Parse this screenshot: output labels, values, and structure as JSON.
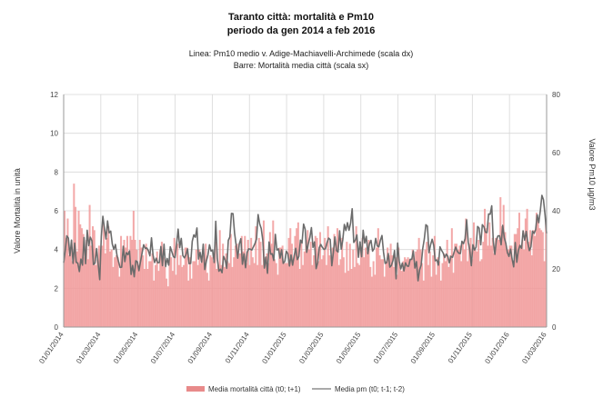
{
  "chart_data": {
    "type": "bar+line",
    "title": "Taranto città: mortalità e Pm10",
    "subtitle": "periodo da gen 2014 a feb 2016",
    "caption_line": "Linea: Pm10 medio v. Adige-Machiavelli-Archimede (scala dx)",
    "caption_bars": "Barre: Mortalità media città (scala sx)",
    "ylabel_left": "Valore Mortalità in unità",
    "ylabel_right": "Valore Pm10 µg/m3",
    "ylim_left": [
      0,
      12
    ],
    "ylim_right": [
      0,
      80
    ],
    "yticks_left": [
      "0",
      "2",
      "4",
      "6",
      "8",
      "10",
      "12"
    ],
    "yticks_right": [
      "0",
      "20",
      "40",
      "60",
      "80"
    ],
    "xticks": [
      "01/01/2014",
      "01/03/2014",
      "01/05/2014",
      "01/07/2014",
      "01/09/2014",
      "01/11/2014",
      "01/01/2015",
      "01/03/2015",
      "01/05/2015",
      "01/07/2015",
      "01/09/2015",
      "01/11/2015",
      "01/01/2016",
      "01/03/2016"
    ],
    "grid": true,
    "legend_position": "bottom",
    "bar_color": "#f19a9a",
    "line_color": "#6b6b6b",
    "series": [
      {
        "name": "Media mortalità città (t0; t+1)",
        "type": "bar",
        "axis": "left",
        "x_start": "01/01/2014",
        "x_end": "01/03/2016",
        "values": [
          6.0,
          4.6,
          5.6,
          3.7,
          4.0,
          3.4,
          7.4,
          6.2,
          3.9,
          6.0,
          5.3,
          5.1,
          4.8,
          3.6,
          4.5,
          3.5,
          6.3,
          4.2,
          5.2,
          5.0,
          3.2,
          3.5,
          4.2,
          3.8,
          4.2,
          5.3,
          3.8,
          4.6,
          5.2,
          3.9,
          4.0,
          3.1,
          3.6,
          3.7,
          3.6,
          2.6,
          4.7,
          3.6,
          4.5,
          4.1,
          4.7,
          3.9,
          4.7,
          4.5,
          6.0,
          4.5,
          4.0,
          3.2,
          4.5,
          4.1,
          3.7,
          3.0,
          4.3,
          3.0,
          3.4,
          3.4,
          3.8,
          2.4,
          3.2,
          3.9,
          2.9,
          4.0,
          4.4,
          3.6,
          3.1,
          2.5,
          2.1,
          3.8,
          3.6,
          2.9,
          4.6,
          2.7,
          4.3,
          3.2,
          3.7,
          3.1,
          3.2,
          4.1,
          4.1,
          2.4,
          3.6,
          2.5,
          3.4,
          3.4,
          4.0,
          3.2,
          4.0,
          3.3,
          3.7,
          3.5,
          4.3,
          2.8,
          2.4,
          3.7,
          3.6,
          3.4,
          4.4,
          3.0,
          3.2,
          5.0,
          3.2,
          4.3,
          3.1,
          3.8,
          3.4,
          3.3,
          4.8,
          3.1,
          3.6,
          4.2,
          4.3,
          3.8,
          3.8,
          4.7,
          3.9,
          4.7,
          3.3,
          4.5,
          3.2,
          4.6,
          3.6,
          3.3,
          5.2,
          3.2,
          4.6,
          4.4,
          3.2,
          5.5,
          3.6,
          3.8,
          3.3,
          4.9,
          4.3,
          5.5,
          3.5,
          3.3,
          2.7,
          4.1,
          4.1,
          4.2,
          3.4,
          3.3,
          3.3,
          4.6,
          5.1,
          4.3,
          3.5,
          4.7,
          5.1,
          5.4,
          3.0,
          4.5,
          3.2,
          3.9,
          4.5,
          5.0,
          4.0,
          4.4,
          3.2,
          3.7,
          4.7,
          4.6,
          3.4,
          4.9,
          3.5,
          3.7,
          4.6,
          3.2,
          5.2,
          3.7,
          3.6,
          4.1,
          4.8,
          4.0,
          5.1,
          3.2,
          3.5,
          4.6,
          3.6,
          2.8,
          4.4,
          2.9,
          4.3,
          3.0,
          4.0,
          3.1,
          5.2,
          3.3,
          3.2,
          4.1,
          4.6,
          3.6,
          4.1,
          3.9,
          4.5,
          3.1,
          2.6,
          3.4,
          2.7,
          4.1,
          5.1,
          3.7,
          3.5,
          3.5,
          2.6,
          3.4,
          4.1,
          3.7,
          4.3,
          3.7,
          3.1,
          3.6,
          2.7,
          4.1,
          3.1,
          2.9,
          3.4,
          3.6,
          3.5,
          3.6,
          3.5,
          3.5,
          4.0,
          3.3,
          3.9,
          4.0,
          4.6,
          4.0,
          3.3,
          2.4,
          4.0,
          4.4,
          3.2,
          3.9,
          2.6,
          3.7,
          4.7,
          2.7,
          3.6,
          3.4,
          2.4,
          3.3,
          3.8,
          3.4,
          4.5,
          3.1,
          3.7,
          5.1,
          2.8,
          4.3,
          4.3,
          4.0,
          4.2,
          3.4,
          4.4,
          4.0,
          5.6,
          3.4,
          4.3,
          4.6,
          3.5,
          5.4,
          4.0,
          3.9,
          4.5,
          3.4,
          3.5,
          4.4,
          6.1,
          5.1,
          4.2,
          5.4,
          4.2,
          4.6,
          3.8,
          4.6,
          4.6,
          4.5,
          6.7,
          5.2,
          6.3,
          4.9,
          4.0,
          4.0,
          4.2,
          4.2,
          3.3,
          4.8,
          4.8,
          5.1,
          5.9,
          4.2,
          4.5,
          4.0,
          5.6,
          6.1,
          4.4,
          5.0,
          3.7,
          5.0,
          4.7,
          5.9,
          5.6,
          5.1,
          5.0,
          4.9,
          3.4,
          5.5
        ]
      },
      {
        "name": "Media pm (t0; t-1; t-2)",
        "type": "line",
        "axis": "right",
        "x_start": "01/01/2014",
        "x_end": "01/03/2016",
        "values": [
          22.1,
          26.3,
          31.4,
          30.6,
          24.5,
          29.9,
          21.9,
          28.9,
          22.3,
          22.0,
          19.1,
          23.4,
          21.3,
          30.8,
          21.8,
          33.3,
          28.0,
          30.9,
          29.7,
          21.5,
          22.0,
          27.0,
          21.8,
          16.3,
          31.1,
          38.1,
          34.0,
          30.3,
          36.5,
          32.4,
          33.0,
          28.6,
          26.7,
          28.4,
          24.7,
          22.5,
          20.5,
          20.6,
          27.8,
          22.5,
          25.6,
          24.9,
          26.2,
          18.1,
          21.2,
          17.3,
          22.8,
          22.4,
          19.4,
          22.5,
          25.4,
          28.3,
          27.1,
          27.2,
          26.3,
          24.5,
          30.7,
          24.8,
          22.2,
          23.7,
          22.1,
          22.2,
          27.7,
          21.1,
          28.5,
          20.8,
          23.6,
          21.3,
          27.6,
          25.9,
          24.2,
          23.9,
          28.4,
          33.7,
          27.3,
          30.5,
          24.6,
          23.8,
          24.9,
          26.9,
          21.8,
          21.9,
          29.5,
          31.7,
          30.9,
          34.1,
          23.4,
          25.7,
          22.3,
          28.5,
          19.8,
          22.7,
          24.8,
          28.3,
          26.1,
          26.5,
          22.2,
          36.4,
          23.6,
          19.2,
          19.9,
          18.7,
          24.3,
          23.1,
          20.2,
          29.8,
          31.0,
          39.1,
          39.0,
          32.3,
          28.2,
          23.7,
          28.6,
          30.4,
          21.6,
          25.2,
          20.4,
          25.7,
          26.9,
          26.8,
          26.5,
          27.6,
          28.7,
          30.3,
          38.7,
          35.5,
          33.9,
          29.8,
          20.3,
          24.1,
          18.5,
          29.3,
          25.1,
          25.2,
          22.9,
          31.9,
          26.5,
          26.9,
          23.7,
          26.6,
          21.9,
          22.6,
          26.1,
          25.2,
          21.0,
          24.8,
          21.3,
          24.5,
          27.1,
          23.2,
          24.3,
          29.9,
          28.9,
          35.4,
          33.7,
          25.7,
          28.6,
          30.8,
          34.2,
          27.4,
          29.3,
          20.1,
          22.1,
          27.3,
          28.4,
          27.4,
          26.7,
          27.0,
          29.1,
          30.6,
          30.1,
          21.1,
          25.7,
          31.0,
          26.3,
          25.8,
          33.1,
          26.8,
          30.0,
          35.3,
          33.2,
          35.9,
          33.3,
          35.8,
          40.7,
          29.1,
          29.9,
          31.7,
          24.0,
          29.3,
          24.2,
          33.3,
          28.9,
          31.2,
          25.2,
          28.6,
          29.8,
          26.1,
          27.0,
          30.5,
          27.9,
          27.6,
          29.9,
          31.5,
          25.7,
          21.9,
          22.1,
          25.3,
          20.6,
          21.2,
          22.9,
          26.3,
          16.6,
          28.9,
          22.7,
          20.0,
          22.0,
          19.3,
          22.1,
          21.0,
          20.9,
          23.3,
          23.3,
          26.2,
          20.3,
          22.5,
          15.9,
          19.7,
          21.3,
          27.0,
          30.3,
          35.2,
          34.7,
          25.6,
          28.3,
          30.2,
          28.1,
          22.8,
          23.1,
          21.3,
          27.6,
          26.4,
          25.5,
          23.9,
          25.1,
          24.3,
          22.1,
          24.3,
          24.0,
          25.8,
          27.5,
          26.1,
          25.4,
          25.3,
          29.5,
          28.7,
          30.4,
          36.9,
          29.3,
          26.5,
          21.1,
          28.3,
          26.5,
          27.5,
          34.6,
          34.0,
          28.3,
          35.2,
          34.5,
          32.6,
          32.5,
          38.9,
          38.8,
          41.7,
          29.6,
          25.0,
          30.1,
          31.4,
          31.4,
          28.3,
          35.0,
          30.7,
          28.8,
          25.6,
          24.3,
          26.8,
          23.4,
          20.7,
          29.1,
          22.3,
          26.4,
          28.1,
          27.1,
          33.1,
          29.9,
          32.9,
          29.0,
          26.3,
          27.6,
          33.0,
          32.2,
          33.5,
          38.6,
          35.9,
          40.1,
          45.3,
          43.8,
          38.6,
          32.2
        ]
      }
    ]
  }
}
